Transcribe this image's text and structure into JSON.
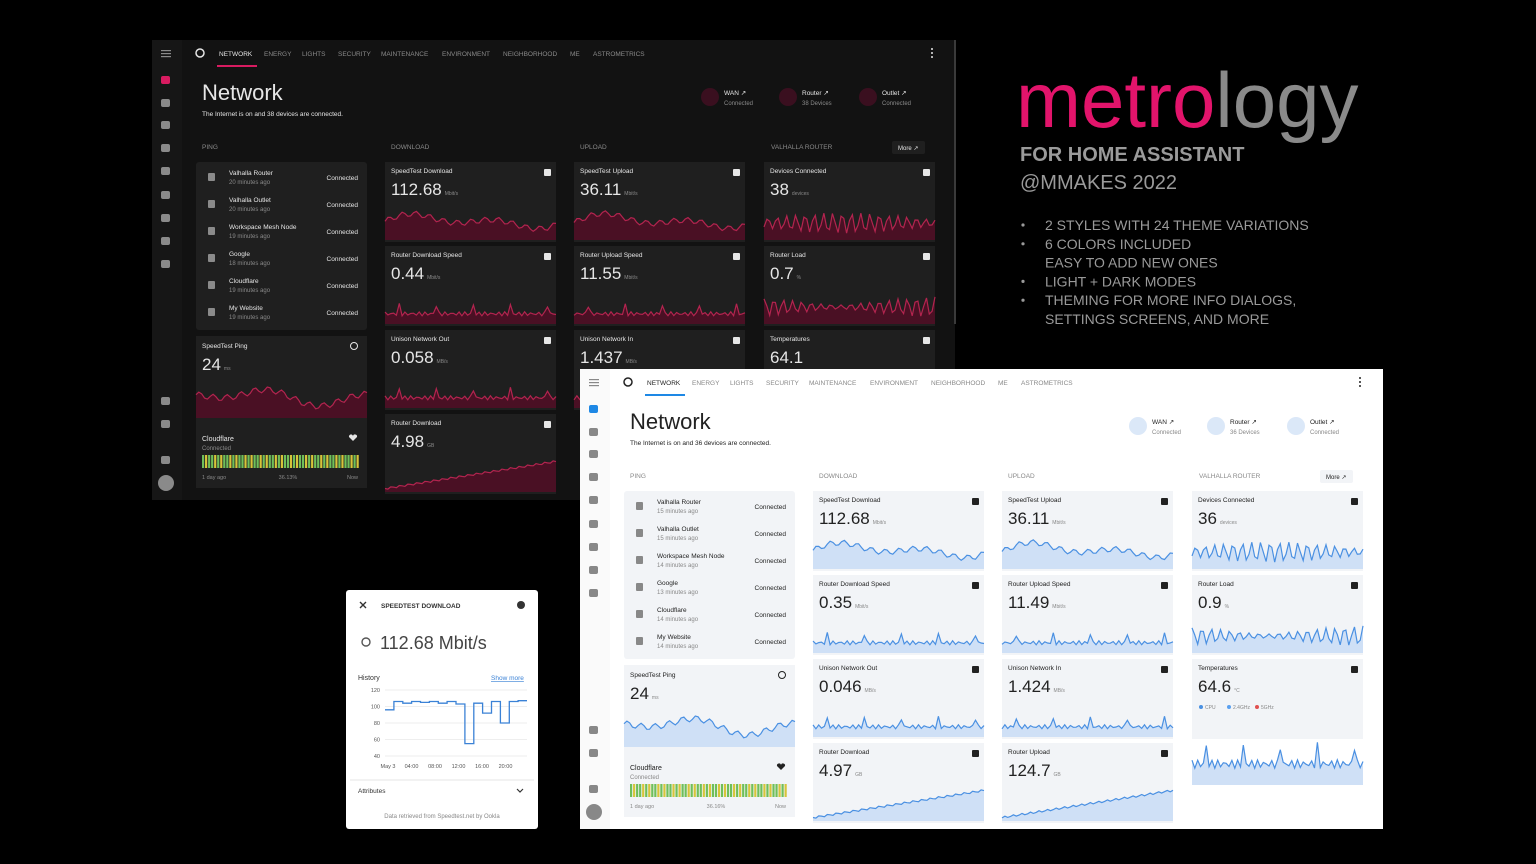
{
  "promo": {
    "brand_highlight": "metro",
    "brand_rest": "logy",
    "subtitle": "FOR HOME ASSISTANT",
    "byline": "@MMAKES 2022",
    "features": [
      [
        "2 STYLES WITH 24 THEME VARIATIONS"
      ],
      [
        "6 COLORS INCLUDED",
        "EASY TO ADD NEW ONES"
      ],
      [
        "LIGHT + DARK MODES"
      ],
      [
        "THEMING FOR MORE INFO DIALOGS,",
        "SETTINGS SCREENS, AND MORE"
      ]
    ]
  },
  "dark": {
    "nav_tabs": [
      "NETWORK",
      "ENERGY",
      "LIGHTS",
      "SECURITY",
      "MAINTENANCE",
      "ENVIRONMENT",
      "NEIGHBORHOOD",
      "ME",
      "ASTROMETRICS"
    ],
    "title": "Network",
    "subtitle": "The Internet is on and 38 devices are connected.",
    "chips": [
      {
        "name": "WAN ↗",
        "status": "Connected"
      },
      {
        "name": "Router ↗",
        "status": "38 Devices"
      },
      {
        "name": "Outlet ↗",
        "status": "Connected"
      }
    ],
    "columns": [
      "PING",
      "DOWNLOAD",
      "UPLOAD",
      "VALHALLA ROUTER"
    ],
    "more": "More ↗",
    "ping_list": [
      {
        "name": "Valhalla Router",
        "time": "20 minutes ago",
        "status": "Connected"
      },
      {
        "name": "Valhalla Outlet",
        "time": "20 minutes ago",
        "status": "Connected"
      },
      {
        "name": "Workspace Mesh Node",
        "time": "19 minutes ago",
        "status": "Connected"
      },
      {
        "name": "Google",
        "time": "18 minutes ago",
        "status": "Connected"
      },
      {
        "name": "Cloudflare",
        "time": "19 minutes ago",
        "status": "Connected"
      },
      {
        "name": "My Website",
        "time": "19 minutes ago",
        "status": "Connected"
      }
    ],
    "ping_card": {
      "label": "SpeedTest Ping",
      "value": 24,
      "unit": "ms"
    },
    "cloudflare": {
      "name": "Cloudflare",
      "status": "Connected",
      "start": "1 day ago",
      "uptime": "36.13%",
      "end": "Now"
    },
    "cards": [
      [
        {
          "label": "SpeedTest Download",
          "value": 112.68,
          "unit": "Mbit/s"
        },
        {
          "label": "Router Download Speed",
          "value": 0.44,
          "unit": "Mbit/s"
        },
        {
          "label": "Unison Network Out",
          "value": 0.058,
          "unit": "MB/s"
        },
        {
          "label": "Router Download",
          "value": 4.98,
          "unit": "GB"
        }
      ],
      [
        {
          "label": "SpeedTest Upload",
          "value": 36.11,
          "unit": "Mbit/s"
        },
        {
          "label": "Router Upload Speed",
          "value": 11.55,
          "unit": "Mbit/s"
        },
        {
          "label": "Unison Network In",
          "value": 1.437,
          "unit": "MB/s"
        }
      ],
      [
        {
          "label": "Devices Connected",
          "value": 38,
          "unit": "devices"
        },
        {
          "label": "Router Load",
          "value": 0.7,
          "unit": "%"
        },
        {
          "label": "Temperatures",
          "value": 64.1
        }
      ]
    ]
  },
  "light": {
    "nav_tabs": [
      "NETWORK",
      "ENERGY",
      "LIGHTS",
      "SECURITY",
      "MAINTENANCE",
      "ENVIRONMENT",
      "NEIGHBORHOOD",
      "ME",
      "ASTROMETRICS"
    ],
    "title": "Network",
    "subtitle": "The Internet is on and 36 devices are connected.",
    "chips": [
      {
        "name": "WAN ↗",
        "status": "Connected"
      },
      {
        "name": "Router ↗",
        "status": "36 Devices"
      },
      {
        "name": "Outlet ↗",
        "status": "Connected"
      }
    ],
    "columns": [
      "PING",
      "DOWNLOAD",
      "UPLOAD",
      "VALHALLA ROUTER"
    ],
    "more": "More ↗",
    "ping_list": [
      {
        "name": "Valhalla Router",
        "time": "15 minutes ago",
        "status": "Connected"
      },
      {
        "name": "Valhalla Outlet",
        "time": "15 minutes ago",
        "status": "Connected"
      },
      {
        "name": "Workspace Mesh Node",
        "time": "14 minutes ago",
        "status": "Connected"
      },
      {
        "name": "Google",
        "time": "13 minutes ago",
        "status": "Connected"
      },
      {
        "name": "Cloudflare",
        "time": "14 minutes ago",
        "status": "Connected"
      },
      {
        "name": "My Website",
        "time": "14 minutes ago",
        "status": "Connected"
      }
    ],
    "ping_card": {
      "label": "SpeedTest Ping",
      "value": 24,
      "unit": "ms"
    },
    "cloudflare": {
      "name": "Cloudflare",
      "status": "Connected",
      "start": "1 day ago",
      "uptime": "36.16%",
      "end": "Now"
    },
    "cards": [
      [
        {
          "label": "SpeedTest Download",
          "value": 112.68,
          "unit": "Mbit/s"
        },
        {
          "label": "Router Download Speed",
          "value": 0.35,
          "unit": "Mbit/s"
        },
        {
          "label": "Unison Network Out",
          "value": 0.046,
          "unit": "MB/s"
        },
        {
          "label": "Router Download",
          "value": 4.97,
          "unit": "GB"
        }
      ],
      [
        {
          "label": "SpeedTest Upload",
          "value": 36.11,
          "unit": "Mbit/s"
        },
        {
          "label": "Router Upload Speed",
          "value": 11.49,
          "unit": "Mbit/s"
        },
        {
          "label": "Unison Network In",
          "value": 1.424,
          "unit": "MB/s"
        },
        {
          "label": "Router Upload",
          "value": 124.7,
          "unit": "GB"
        }
      ],
      [
        {
          "label": "Devices Connected",
          "value": 36,
          "unit": "devices"
        },
        {
          "label": "Router Load",
          "value": 0.9,
          "unit": "%"
        },
        {
          "label": "Temperatures",
          "value": 64.6,
          "unit": "°C",
          "legend": [
            "CPU",
            "2.4GHz",
            "5GHz"
          ]
        }
      ]
    ]
  },
  "dialog": {
    "title": "SPEEDTEST DOWNLOAD",
    "value": "112.68 Mbit/s",
    "history_label": "History",
    "show_more": "Show more",
    "history": {
      "ylim": [
        40,
        120
      ],
      "yticks": [
        120,
        100,
        80,
        60,
        40
      ],
      "xticks": [
        "May 3",
        "04:00",
        "08:00",
        "12:00",
        "16:00",
        "20:00"
      ],
      "values": [
        96,
        106,
        104,
        106,
        105,
        106,
        104,
        106,
        103,
        55,
        104,
        92,
        106,
        80,
        106,
        107
      ]
    },
    "attributes": "Attributes",
    "footer": "Data retrieved from Speedtest.net by Ookla"
  }
}
